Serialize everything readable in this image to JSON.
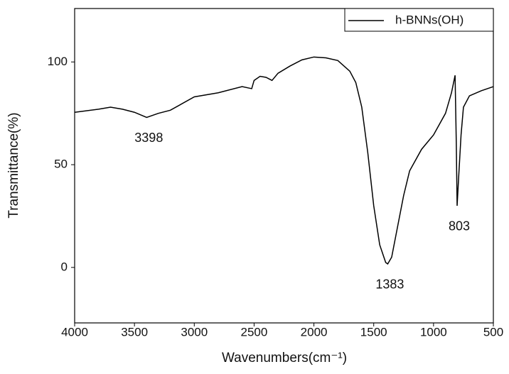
{
  "chart_data": {
    "type": "line",
    "xlabel": "Wavenumbers(cm⁻¹)",
    "ylabel": "Transmittance(%)",
    "x": [
      4000,
      3800,
      3700,
      3600,
      3500,
      3398,
      3300,
      3200,
      3000,
      2800,
      2600,
      2520,
      2500,
      2450,
      2400,
      2350,
      2300,
      2200,
      2100,
      2000,
      1900,
      1800,
      1700,
      1650,
      1600,
      1550,
      1500,
      1450,
      1400,
      1383,
      1350,
      1300,
      1250,
      1200,
      1100,
      1000,
      900,
      850,
      820,
      810,
      803,
      790,
      770,
      750,
      700,
      600,
      500
    ],
    "series": [
      {
        "name": "h-BNNs(OH)",
        "color": "#000000",
        "values": [
          75.5,
          77,
          78,
          77,
          75.5,
          73,
          75,
          76.5,
          83,
          85,
          88,
          87,
          91,
          93,
          92.5,
          91,
          94.5,
          98,
          101,
          102.4,
          102,
          100.7,
          95.5,
          90,
          78,
          56,
          30,
          11,
          2.4,
          1.7,
          5,
          20,
          35,
          47,
          57.5,
          64.5,
          75,
          85,
          93.5,
          61,
          30,
          44,
          64.5,
          78,
          83.5,
          86,
          88
        ]
      }
    ],
    "annotations": [
      {
        "text": "3398",
        "x": 3398
      },
      {
        "text": "1383",
        "x": 1383
      },
      {
        "text": "803",
        "x": 803
      }
    ],
    "xlim": [
      4000,
      500
    ],
    "xticks": [
      4000,
      3500,
      3000,
      2500,
      2000,
      1500,
      1000,
      500
    ],
    "ylim": [
      -27,
      126
    ],
    "yticks": [
      0,
      50,
      100
    ],
    "legend": "upper-right",
    "grid": false
  }
}
